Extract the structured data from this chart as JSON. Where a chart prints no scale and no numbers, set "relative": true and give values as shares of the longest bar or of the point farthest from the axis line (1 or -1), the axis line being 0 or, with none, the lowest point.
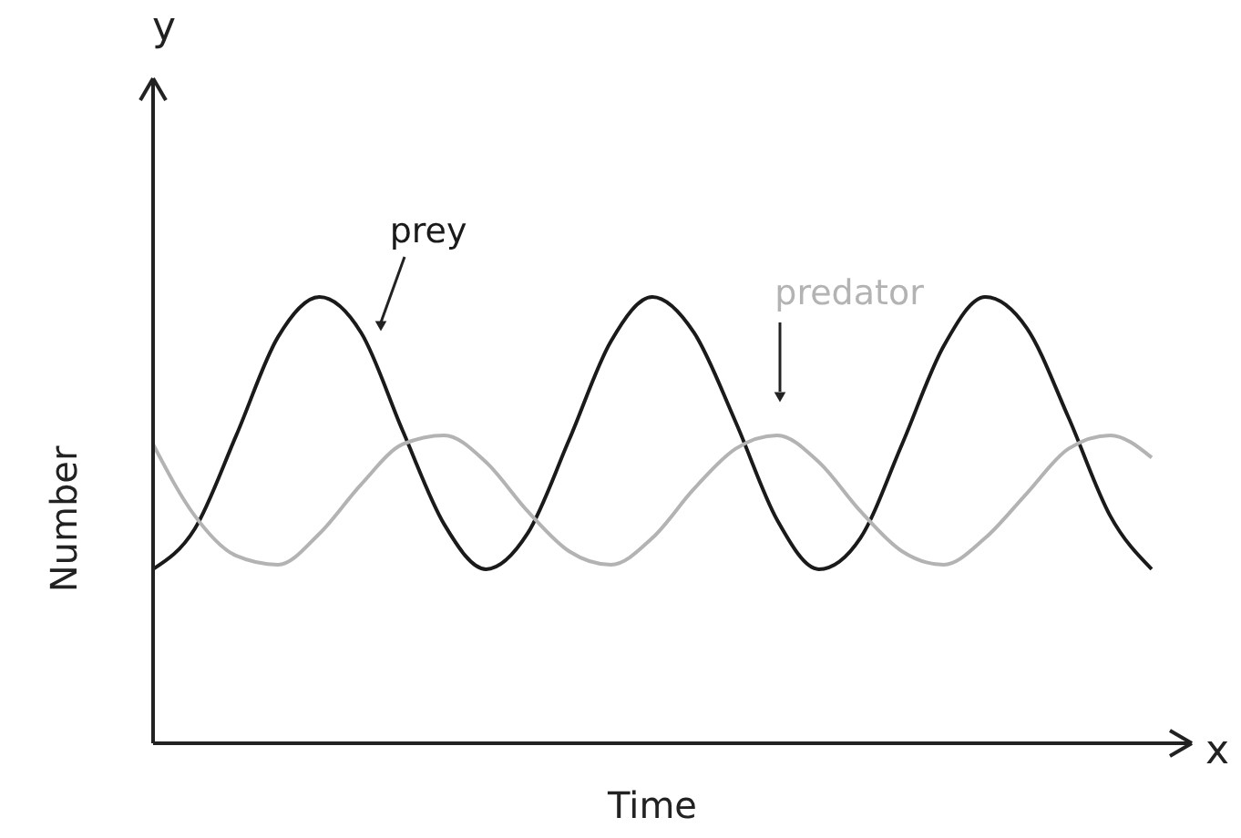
{
  "chart_data": {
    "type": "line",
    "relative": true,
    "xlabel": "Time",
    "ylabel": "Number",
    "legend": false,
    "categories": [
      null,
      null,
      null,
      null,
      null,
      null,
      null,
      null,
      null,
      null,
      null,
      null,
      null,
      null,
      null,
      null,
      null,
      null,
      null,
      null,
      null,
      null,
      null,
      null,
      null
    ],
    "series": [
      {
        "name": "prey",
        "color": "#1a1a1a",
        "values": [
          0.39,
          0.48,
          0.69,
          0.91,
          1.0,
          0.92,
          0.7,
          0.49,
          0.39,
          0.47,
          0.68,
          0.9,
          1.0,
          0.92,
          0.72,
          0.5,
          0.39,
          0.46,
          0.67,
          0.89,
          1.0,
          0.93,
          0.73,
          0.51,
          0.39
        ]
      },
      {
        "name": "predator",
        "color": "#b3b3b3",
        "values": [
          0.67,
          0.51,
          0.42,
          0.4,
          0.47,
          0.58,
          0.67,
          0.69,
          0.63,
          0.52,
          0.43,
          0.4,
          0.46,
          0.57,
          0.66,
          0.69,
          0.63,
          0.52,
          0.43,
          0.4,
          0.46,
          0.56,
          0.66,
          0.69,
          0.64
        ]
      }
    ],
    "annotations": [
      "y",
      "x"
    ]
  }
}
